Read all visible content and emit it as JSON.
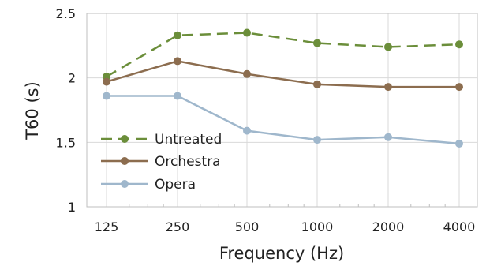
{
  "chart_data": {
    "type": "line",
    "xlabel": "Frequency (Hz)",
    "ylabel": "T60 (s)",
    "x_scale": "log2",
    "categories": [
      "125",
      "250",
      "500",
      "1000",
      "2000",
      "4000"
    ],
    "x": [
      125,
      250,
      500,
      1000,
      2000,
      4000
    ],
    "ylim": [
      1,
      2.5
    ],
    "yticks": [
      1,
      1.5,
      2,
      2.5
    ],
    "ytick_labels": [
      "1",
      "1.5",
      "2",
      "2.5"
    ],
    "grid": true,
    "legend_position": "bottom-left",
    "series": [
      {
        "name": "Untreated",
        "values": [
          2.01,
          2.33,
          2.35,
          2.27,
          2.24,
          2.26
        ],
        "color": "#6b8e3a",
        "style": "dashed"
      },
      {
        "name": "Orchestra",
        "values": [
          1.97,
          2.13,
          2.03,
          1.95,
          1.93,
          1.93
        ],
        "color": "#8c6d4f",
        "style": "solid"
      },
      {
        "name": "Opera",
        "values": [
          1.86,
          1.86,
          1.59,
          1.52,
          1.54,
          1.49
        ],
        "color": "#9fb7cc",
        "style": "solid"
      }
    ]
  }
}
